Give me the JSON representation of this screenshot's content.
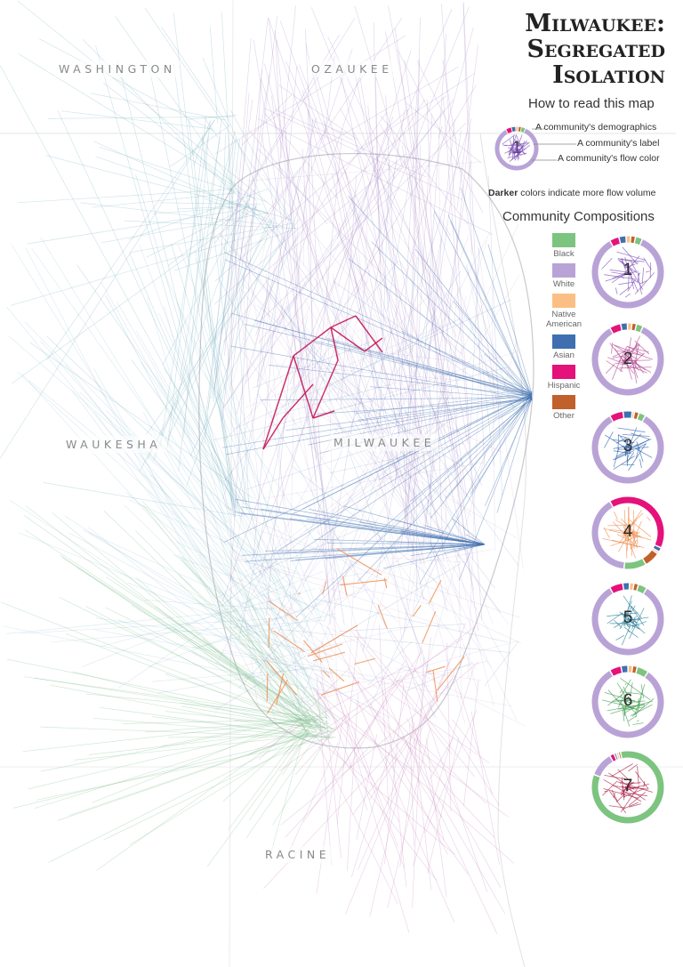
{
  "title": {
    "line1": "Milwaukee:",
    "line2": "Segregated",
    "line3": "Isolation"
  },
  "counties": {
    "washington": "WASHINGTON",
    "ozaukee": "OZAUKEE",
    "waukesha": "WAUKESHA",
    "milwaukee": "MILWAUKEE",
    "racine": "RACINE"
  },
  "how_to_read": {
    "heading": "How to read this map",
    "demographics": "A community's demographics",
    "label": "A community's label",
    "flow_color": "A community's flow color",
    "example_number": "1",
    "darker_bold": "Darker",
    "darker_rest": " colors indicate more flow volume"
  },
  "compositions": {
    "heading": "Community Compositions",
    "legend": [
      {
        "label": "Black",
        "color": "#7cc47f"
      },
      {
        "label": "White",
        "color": "#b9a3d6"
      },
      {
        "label": "Native American",
        "color": "#fbbf85"
      },
      {
        "label": "Asian",
        "color": "#3f6fb0"
      },
      {
        "label": "Hispanic",
        "color": "#e4127a"
      },
      {
        "label": "Other",
        "color": "#c0602b"
      }
    ]
  },
  "communities": [
    {
      "number": "1",
      "flow_color": "#7b4bb3",
      "composition": [
        0.03,
        0.8,
        0.02,
        0.03,
        0.04,
        0.02
      ]
    },
    {
      "number": "2",
      "flow_color": "#b34a93",
      "composition": [
        0.03,
        0.84,
        0.02,
        0.03,
        0.05,
        0.02
      ]
    },
    {
      "number": "3",
      "flow_color": "#2f63ad",
      "composition": [
        0.03,
        0.82,
        0.01,
        0.04,
        0.06,
        0.02
      ]
    },
    {
      "number": "4",
      "flow_color": "#f08a4b",
      "composition": [
        0.1,
        0.4,
        0.01,
        0.02,
        0.4,
        0.07
      ]
    },
    {
      "number": "5",
      "flow_color": "#2b7f9a",
      "composition": [
        0.04,
        0.83,
        0.02,
        0.03,
        0.06,
        0.02
      ]
    },
    {
      "number": "6",
      "flow_color": "#3e9b4f",
      "composition": [
        0.05,
        0.79,
        0.02,
        0.03,
        0.05,
        0.02
      ]
    },
    {
      "number": "7",
      "flow_color": "#a8153e",
      "composition": [
        0.84,
        0.11,
        0.01,
        0.01,
        0.02,
        0.01
      ]
    }
  ],
  "map_colors": {
    "washington_flow": "#6aa8b8",
    "ozaukee_flow": "#a98cc8",
    "waukesha_flow": "#8cc0d0",
    "south_flow": "#7fbf8c",
    "racine_flow": "#c98cc0",
    "east_flow": "#3f6fb0",
    "community7_flow": "#c81b5a",
    "community4_flow": "#f08a4b"
  }
}
